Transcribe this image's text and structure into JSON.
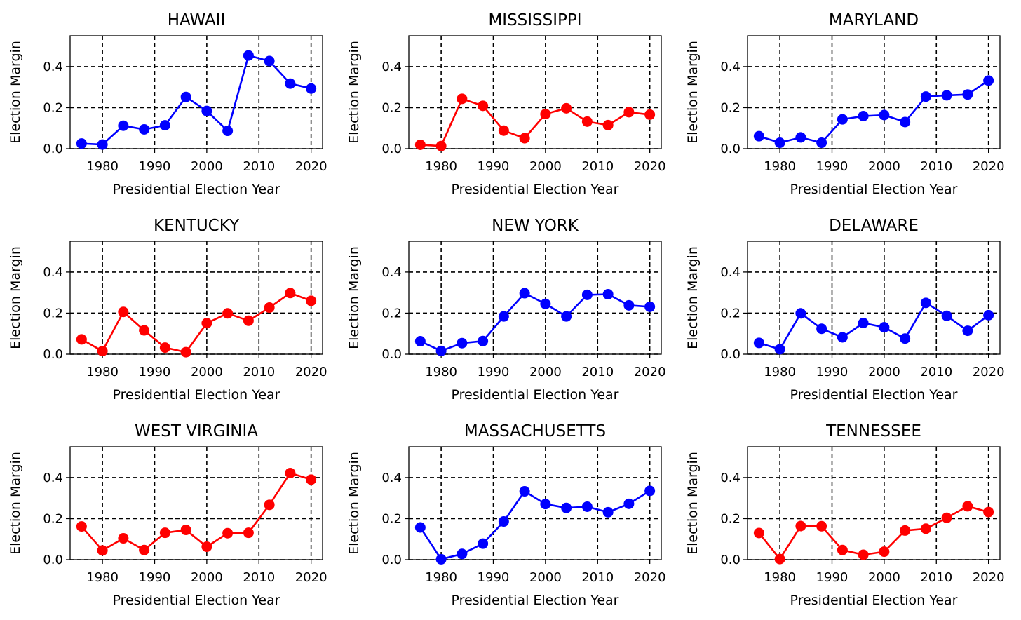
{
  "chart_data": [
    {
      "type": "line",
      "title": "HAWAII",
      "xlabel": "Presidential Election Year",
      "ylabel": "Election Margin",
      "color": "#0000ff",
      "x": [
        1976,
        1980,
        1984,
        1988,
        1992,
        1996,
        2000,
        2004,
        2008,
        2012,
        2016,
        2020
      ],
      "values": [
        0.025,
        0.02,
        0.112,
        0.094,
        0.114,
        0.252,
        0.184,
        0.087,
        0.454,
        0.427,
        0.317,
        0.293
      ],
      "xticks": [
        1980,
        1990,
        2000,
        2010,
        2020
      ],
      "yticks": [
        "0.0",
        "0.2",
        "0.4"
      ],
      "ylim": [
        0,
        0.55
      ],
      "xlim": [
        1973.8,
        2022.2
      ],
      "grid": true
    },
    {
      "type": "line",
      "title": "MISSISSIPPI",
      "xlabel": "Presidential Election Year",
      "ylabel": "Election Margin",
      "color": "#ff0000",
      "x": [
        1976,
        1980,
        1984,
        1988,
        1992,
        1996,
        2000,
        2004,
        2008,
        2012,
        2016,
        2020
      ],
      "values": [
        0.019,
        0.013,
        0.243,
        0.209,
        0.088,
        0.051,
        0.169,
        0.197,
        0.132,
        0.115,
        0.178,
        0.166
      ],
      "xticks": [
        1980,
        1990,
        2000,
        2010,
        2020
      ],
      "yticks": [
        "0.0",
        "0.2",
        "0.4"
      ],
      "ylim": [
        0,
        0.55
      ],
      "xlim": [
        1973.8,
        2022.2
      ],
      "grid": true
    },
    {
      "type": "line",
      "title": "MARYLAND",
      "xlabel": "Presidential Election Year",
      "ylabel": "Election Margin",
      "color": "#0000ff",
      "x": [
        1976,
        1980,
        1984,
        1988,
        1992,
        1996,
        2000,
        2004,
        2008,
        2012,
        2016,
        2020
      ],
      "values": [
        0.061,
        0.029,
        0.055,
        0.029,
        0.143,
        0.159,
        0.164,
        0.13,
        0.254,
        0.26,
        0.264,
        0.332
      ],
      "xticks": [
        1980,
        1990,
        2000,
        2010,
        2020
      ],
      "yticks": [
        "0.0",
        "0.2",
        "0.4"
      ],
      "ylim": [
        0,
        0.55
      ],
      "xlim": [
        1973.8,
        2022.2
      ],
      "grid": true
    },
    {
      "type": "line",
      "title": "KENTUCKY",
      "xlabel": "Presidential Election Year",
      "ylabel": "Election Margin",
      "color": "#ff0000",
      "x": [
        1976,
        1980,
        1984,
        1988,
        1992,
        1996,
        2000,
        2004,
        2008,
        2012,
        2016,
        2020
      ],
      "values": [
        0.072,
        0.015,
        0.206,
        0.116,
        0.032,
        0.01,
        0.151,
        0.199,
        0.163,
        0.227,
        0.298,
        0.26
      ],
      "xticks": [
        1980,
        1990,
        2000,
        2010,
        2020
      ],
      "yticks": [
        "0.0",
        "0.2",
        "0.4"
      ],
      "ylim": [
        0,
        0.55
      ],
      "xlim": [
        1973.8,
        2022.2
      ],
      "grid": true
    },
    {
      "type": "line",
      "title": "NEW YORK",
      "xlabel": "Presidential Election Year",
      "ylabel": "Election Margin",
      "color": "#0000ff",
      "x": [
        1976,
        1980,
        1984,
        1988,
        1992,
        1996,
        2000,
        2004,
        2008,
        2012,
        2016,
        2020
      ],
      "values": [
        0.063,
        0.016,
        0.054,
        0.064,
        0.184,
        0.297,
        0.245,
        0.184,
        0.289,
        0.292,
        0.238,
        0.231
      ],
      "xticks": [
        1980,
        1990,
        2000,
        2010,
        2020
      ],
      "yticks": [
        "0.0",
        "0.2",
        "0.4"
      ],
      "ylim": [
        0,
        0.55
      ],
      "xlim": [
        1973.8,
        2022.2
      ],
      "grid": true
    },
    {
      "type": "line",
      "title": "DELAWARE",
      "xlabel": "Presidential Election Year",
      "ylabel": "Election Margin",
      "color": "#0000ff",
      "x": [
        1976,
        1980,
        1984,
        1988,
        1992,
        1996,
        2000,
        2004,
        2008,
        2012,
        2016,
        2020
      ],
      "values": [
        0.055,
        0.024,
        0.199,
        0.124,
        0.082,
        0.152,
        0.131,
        0.076,
        0.25,
        0.187,
        0.114,
        0.19
      ],
      "xticks": [
        1980,
        1990,
        2000,
        2010,
        2020
      ],
      "yticks": [
        "0.0",
        "0.2",
        "0.4"
      ],
      "ylim": [
        0,
        0.55
      ],
      "xlim": [
        1973.8,
        2022.2
      ],
      "grid": true
    },
    {
      "type": "line",
      "title": "WEST VIRGINIA",
      "xlabel": "Presidential Election Year",
      "ylabel": "Election Margin",
      "color": "#ff0000",
      "x": [
        1976,
        1980,
        1984,
        1988,
        1992,
        1996,
        2000,
        2004,
        2008,
        2012,
        2016,
        2020
      ],
      "values": [
        0.162,
        0.045,
        0.104,
        0.047,
        0.131,
        0.145,
        0.063,
        0.129,
        0.131,
        0.267,
        0.422,
        0.39
      ],
      "xticks": [
        1980,
        1990,
        2000,
        2010,
        2020
      ],
      "yticks": [
        "0.0",
        "0.2",
        "0.4"
      ],
      "ylim": [
        0,
        0.55
      ],
      "xlim": [
        1973.8,
        2022.2
      ],
      "grid": true
    },
    {
      "type": "line",
      "title": "MASSACHUSETTS",
      "xlabel": "Presidential Election Year",
      "ylabel": "Election Margin",
      "color": "#0000ff",
      "x": [
        1976,
        1980,
        1984,
        1988,
        1992,
        1996,
        2000,
        2004,
        2008,
        2012,
        2016,
        2020
      ],
      "values": [
        0.157,
        0.002,
        0.028,
        0.078,
        0.186,
        0.333,
        0.271,
        0.252,
        0.258,
        0.231,
        0.272,
        0.335
      ],
      "xticks": [
        1980,
        1990,
        2000,
        2010,
        2020
      ],
      "yticks": [
        "0.0",
        "0.2",
        "0.4"
      ],
      "ylim": [
        0,
        0.55
      ],
      "xlim": [
        1973.8,
        2022.2
      ],
      "grid": true
    },
    {
      "type": "line",
      "title": "TENNESSEE",
      "xlabel": "Presidential Election Year",
      "ylabel": "Election Margin",
      "color": "#ff0000",
      "x": [
        1976,
        1980,
        1984,
        1988,
        1992,
        1996,
        2000,
        2004,
        2008,
        2012,
        2016,
        2020
      ],
      "values": [
        0.13,
        0.003,
        0.164,
        0.163,
        0.047,
        0.024,
        0.039,
        0.142,
        0.151,
        0.204,
        0.26,
        0.232
      ],
      "xticks": [
        1980,
        1990,
        2000,
        2010,
        2020
      ],
      "yticks": [
        "0.0",
        "0.2",
        "0.4"
      ],
      "ylim": [
        0,
        0.55
      ],
      "xlim": [
        1973.8,
        2022.2
      ],
      "grid": true
    }
  ]
}
